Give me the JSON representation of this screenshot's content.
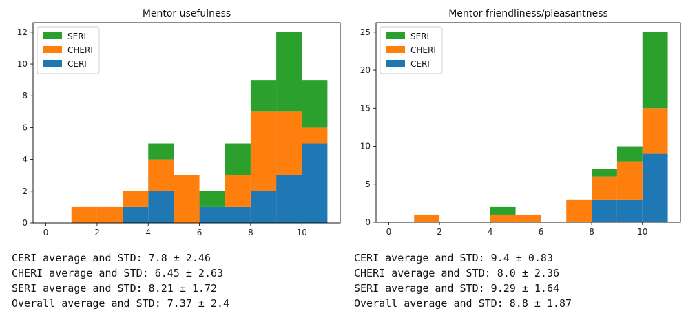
{
  "chart_data": [
    {
      "type": "bar",
      "stacked": true,
      "title": "Mentor usefulness",
      "xlabel": "",
      "ylabel": "",
      "bins": [
        [
          1,
          2
        ],
        [
          2,
          3
        ],
        [
          3,
          4
        ],
        [
          4,
          5
        ],
        [
          5,
          6
        ],
        [
          6,
          7
        ],
        [
          7,
          8
        ],
        [
          8,
          9
        ],
        [
          9,
          10
        ],
        [
          10,
          11
        ]
      ],
      "xticks": [
        "0",
        "2",
        "4",
        "6",
        "8",
        "10"
      ],
      "yticks": [
        "0",
        "2",
        "4",
        "6",
        "8",
        "10",
        "12"
      ],
      "xlim": [
        -0.5,
        11.5
      ],
      "ylim": [
        0,
        12.6
      ],
      "legend_position": "top-left",
      "series": [
        {
          "name": "CERI",
          "color": "#1f77b4",
          "values": [
            0,
            0,
            1,
            2,
            0,
            1,
            1,
            2,
            3,
            5
          ]
        },
        {
          "name": "CHERI",
          "color": "#ff7f0e",
          "values": [
            1,
            1,
            1,
            2,
            3,
            0,
            2,
            5,
            4,
            1
          ]
        },
        {
          "name": "SERI",
          "color": "#2ca02c",
          "values": [
            0,
            0,
            0,
            1,
            0,
            1,
            2,
            2,
            5,
            3
          ]
        }
      ]
    },
    {
      "type": "bar",
      "stacked": true,
      "title": "Mentor friendliness/pleasantness",
      "xlabel": "",
      "ylabel": "",
      "bins": [
        [
          1,
          2
        ],
        [
          2,
          3
        ],
        [
          3,
          4
        ],
        [
          4,
          5
        ],
        [
          5,
          6
        ],
        [
          6,
          7
        ],
        [
          7,
          8
        ],
        [
          8,
          9
        ],
        [
          9,
          10
        ],
        [
          10,
          11
        ]
      ],
      "xticks": [
        "0",
        "2",
        "4",
        "6",
        "8",
        "10"
      ],
      "yticks": [
        "0",
        "5",
        "10",
        "15",
        "20",
        "25"
      ],
      "xlim": [
        -0.5,
        11.5
      ],
      "ylim": [
        0,
        26.25
      ],
      "legend_position": "top-left",
      "series": [
        {
          "name": "CERI",
          "color": "#1f77b4",
          "values": [
            0,
            0,
            0,
            0,
            0,
            0,
            0,
            3,
            3,
            9
          ]
        },
        {
          "name": "CHERI",
          "color": "#ff7f0e",
          "values": [
            1,
            0,
            0,
            1,
            1,
            0,
            3,
            3,
            5,
            6
          ]
        },
        {
          "name": "SERI",
          "color": "#2ca02c",
          "values": [
            0,
            0,
            0,
            1,
            0,
            0,
            0,
            1,
            2,
            10
          ]
        }
      ]
    }
  ],
  "stats": {
    "left": [
      "CERI average and STD: 7.8 ± 2.46",
      "CHERI average and STD: 6.45 ± 2.63",
      "SERI average and STD: 8.21 ± 1.72",
      "Overall average and STD: 7.37 ± 2.4"
    ],
    "right": [
      "CERI average and STD: 9.4 ± 0.83",
      "CHERI average and STD: 8.0 ± 2.36",
      "SERI average and STD: 9.29 ± 1.64",
      "Overall average and STD: 8.8 ± 1.87"
    ]
  }
}
